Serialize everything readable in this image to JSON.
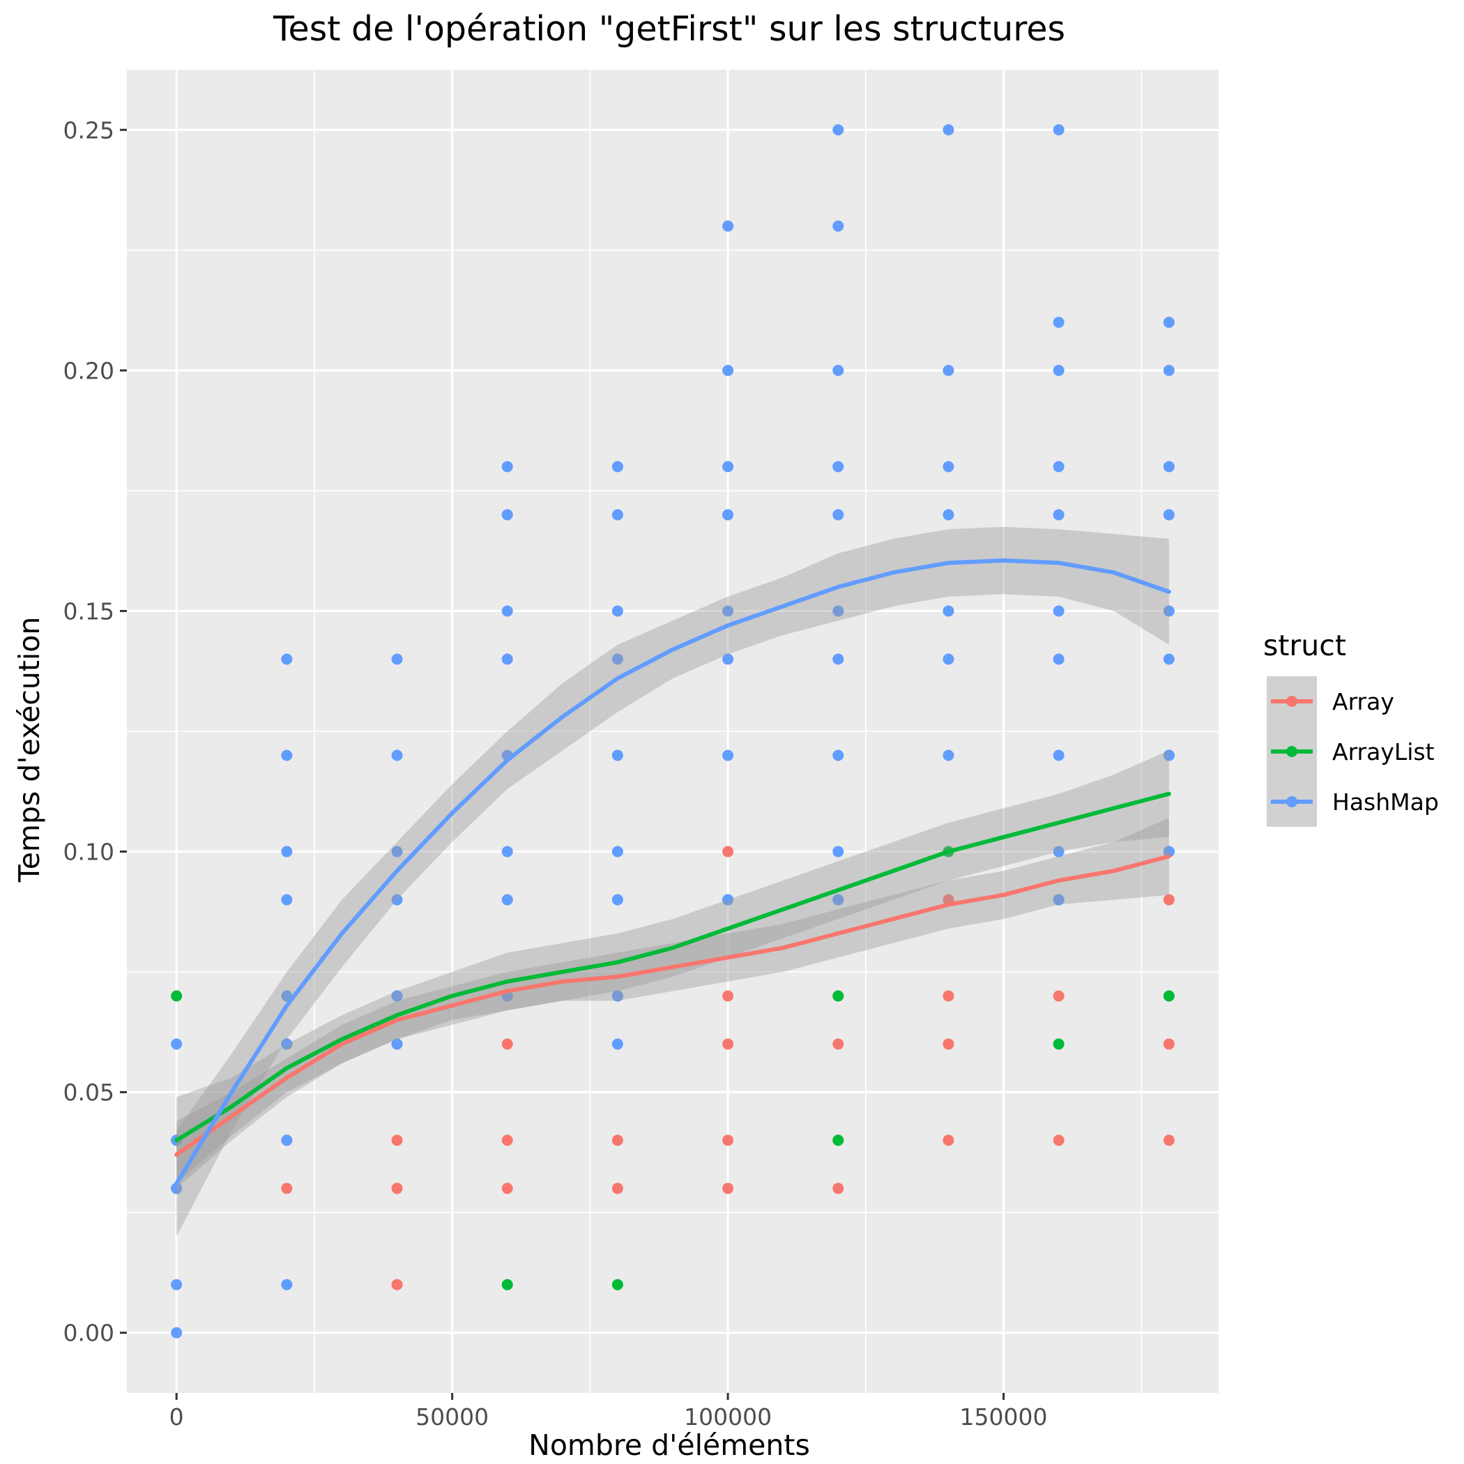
{
  "chart_data": {
    "type": "scatter",
    "title": "Test de l'opération \"getFirst\" sur les structures",
    "xlabel": "Nombre d'éléments",
    "ylabel": "Temps d'exécution",
    "xlim": [
      -9000,
      189000
    ],
    "ylim": [
      -0.0125,
      0.2625
    ],
    "x_ticks": [
      0,
      50000,
      100000,
      150000
    ],
    "x_tick_labels": [
      "0",
      "50000",
      "100000",
      "150000"
    ],
    "y_ticks": [
      0,
      0.05,
      0.1,
      0.15,
      0.2,
      0.25
    ],
    "y_tick_labels": [
      "0.00",
      "0.05",
      "0.10",
      "0.15",
      "0.20",
      "0.25"
    ],
    "grid": true,
    "legend": {
      "title": "struct",
      "position": "right"
    },
    "series": [
      {
        "name": "Array",
        "color": "#F8766D",
        "points": [
          [
            0,
            0.03
          ],
          [
            0,
            0.04
          ],
          [
            20000,
            0.03
          ],
          [
            20000,
            0.04
          ],
          [
            20000,
            0.06
          ],
          [
            40000,
            0.01
          ],
          [
            40000,
            0.03
          ],
          [
            40000,
            0.04
          ],
          [
            40000,
            0.06
          ],
          [
            60000,
            0.03
          ],
          [
            60000,
            0.04
          ],
          [
            60000,
            0.06
          ],
          [
            60000,
            0.07
          ],
          [
            80000,
            0.03
          ],
          [
            80000,
            0.04
          ],
          [
            80000,
            0.07
          ],
          [
            100000,
            0.03
          ],
          [
            100000,
            0.04
          ],
          [
            100000,
            0.06
          ],
          [
            100000,
            0.07
          ],
          [
            100000,
            0.1
          ],
          [
            120000,
            0.03
          ],
          [
            120000,
            0.04
          ],
          [
            120000,
            0.06
          ],
          [
            120000,
            0.07
          ],
          [
            140000,
            0.04
          ],
          [
            140000,
            0.06
          ],
          [
            140000,
            0.07
          ],
          [
            140000,
            0.09
          ],
          [
            160000,
            0.04
          ],
          [
            160000,
            0.07
          ],
          [
            180000,
            0.04
          ],
          [
            180000,
            0.06
          ],
          [
            180000,
            0.07
          ],
          [
            180000,
            0.09
          ]
        ],
        "smooth": [
          [
            0,
            0.037
          ],
          [
            10000,
            0.045
          ],
          [
            20000,
            0.053
          ],
          [
            30000,
            0.06
          ],
          [
            40000,
            0.065
          ],
          [
            50000,
            0.068
          ],
          [
            60000,
            0.071
          ],
          [
            70000,
            0.073
          ],
          [
            80000,
            0.074
          ],
          [
            90000,
            0.076
          ],
          [
            100000,
            0.078
          ],
          [
            110000,
            0.08
          ],
          [
            120000,
            0.083
          ],
          [
            130000,
            0.086
          ],
          [
            140000,
            0.089
          ],
          [
            150000,
            0.091
          ],
          [
            160000,
            0.094
          ],
          [
            170000,
            0.096
          ],
          [
            180000,
            0.099
          ]
        ],
        "band": [
          0.007,
          0.005,
          0.004,
          0.004,
          0.004,
          0.004,
          0.004,
          0.004,
          0.005,
          0.005,
          0.005,
          0.005,
          0.005,
          0.005,
          0.005,
          0.005,
          0.005,
          0.006,
          0.008
        ]
      },
      {
        "name": "ArrayList",
        "color": "#00BA38",
        "points": [
          [
            0,
            0.07
          ],
          [
            0,
            0.04
          ],
          [
            20000,
            0.06
          ],
          [
            40000,
            0.07
          ],
          [
            60000,
            0.01
          ],
          [
            60000,
            0.07
          ],
          [
            80000,
            0.01
          ],
          [
            80000,
            0.07
          ],
          [
            100000,
            0.09
          ],
          [
            120000,
            0.04
          ],
          [
            120000,
            0.07
          ],
          [
            120000,
            0.09
          ],
          [
            140000,
            0.1
          ],
          [
            160000,
            0.06
          ],
          [
            160000,
            0.09
          ],
          [
            180000,
            0.07
          ],
          [
            180000,
            0.1
          ],
          [
            180000,
            0.12
          ]
        ],
        "smooth": [
          [
            0,
            0.04
          ],
          [
            10000,
            0.047
          ],
          [
            20000,
            0.055
          ],
          [
            30000,
            0.061
          ],
          [
            40000,
            0.066
          ],
          [
            50000,
            0.07
          ],
          [
            60000,
            0.073
          ],
          [
            70000,
            0.075
          ],
          [
            80000,
            0.077
          ],
          [
            90000,
            0.08
          ],
          [
            100000,
            0.084
          ],
          [
            110000,
            0.088
          ],
          [
            120000,
            0.092
          ],
          [
            130000,
            0.096
          ],
          [
            140000,
            0.1
          ],
          [
            150000,
            0.103
          ],
          [
            160000,
            0.106
          ],
          [
            170000,
            0.109
          ],
          [
            180000,
            0.112
          ]
        ],
        "band": [
          0.009,
          0.006,
          0.005,
          0.005,
          0.005,
          0.005,
          0.006,
          0.006,
          0.006,
          0.006,
          0.006,
          0.006,
          0.006,
          0.006,
          0.006,
          0.006,
          0.006,
          0.007,
          0.009
        ]
      },
      {
        "name": "HashMap",
        "color": "#619CFF",
        "points": [
          [
            0,
            0.0
          ],
          [
            0,
            0.01
          ],
          [
            0,
            0.03
          ],
          [
            0,
            0.04
          ],
          [
            0,
            0.06
          ],
          [
            20000,
            0.01
          ],
          [
            20000,
            0.04
          ],
          [
            20000,
            0.06
          ],
          [
            20000,
            0.07
          ],
          [
            20000,
            0.09
          ],
          [
            20000,
            0.1
          ],
          [
            20000,
            0.12
          ],
          [
            20000,
            0.14
          ],
          [
            40000,
            0.06
          ],
          [
            40000,
            0.07
          ],
          [
            40000,
            0.09
          ],
          [
            40000,
            0.1
          ],
          [
            40000,
            0.12
          ],
          [
            40000,
            0.14
          ],
          [
            60000,
            0.07
          ],
          [
            60000,
            0.09
          ],
          [
            60000,
            0.1
          ],
          [
            60000,
            0.12
          ],
          [
            60000,
            0.14
          ],
          [
            60000,
            0.15
          ],
          [
            60000,
            0.17
          ],
          [
            60000,
            0.18
          ],
          [
            80000,
            0.06
          ],
          [
            80000,
            0.07
          ],
          [
            80000,
            0.09
          ],
          [
            80000,
            0.1
          ],
          [
            80000,
            0.12
          ],
          [
            80000,
            0.14
          ],
          [
            80000,
            0.15
          ],
          [
            80000,
            0.17
          ],
          [
            80000,
            0.18
          ],
          [
            100000,
            0.09
          ],
          [
            100000,
            0.12
          ],
          [
            100000,
            0.14
          ],
          [
            100000,
            0.15
          ],
          [
            100000,
            0.17
          ],
          [
            100000,
            0.18
          ],
          [
            100000,
            0.2
          ],
          [
            100000,
            0.23
          ],
          [
            120000,
            0.09
          ],
          [
            120000,
            0.1
          ],
          [
            120000,
            0.12
          ],
          [
            120000,
            0.14
          ],
          [
            120000,
            0.15
          ],
          [
            120000,
            0.17
          ],
          [
            120000,
            0.18
          ],
          [
            120000,
            0.2
          ],
          [
            120000,
            0.23
          ],
          [
            120000,
            0.25
          ],
          [
            140000,
            0.12
          ],
          [
            140000,
            0.14
          ],
          [
            140000,
            0.15
          ],
          [
            140000,
            0.17
          ],
          [
            140000,
            0.18
          ],
          [
            140000,
            0.2
          ],
          [
            140000,
            0.25
          ],
          [
            160000,
            0.09
          ],
          [
            160000,
            0.1
          ],
          [
            160000,
            0.12
          ],
          [
            160000,
            0.14
          ],
          [
            160000,
            0.15
          ],
          [
            160000,
            0.17
          ],
          [
            160000,
            0.18
          ],
          [
            160000,
            0.2
          ],
          [
            160000,
            0.21
          ],
          [
            160000,
            0.25
          ],
          [
            180000,
            0.1
          ],
          [
            180000,
            0.12
          ],
          [
            180000,
            0.14
          ],
          [
            180000,
            0.15
          ],
          [
            180000,
            0.17
          ],
          [
            180000,
            0.18
          ],
          [
            180000,
            0.2
          ],
          [
            180000,
            0.21
          ]
        ],
        "smooth": [
          [
            0,
            0.031
          ],
          [
            10000,
            0.05
          ],
          [
            20000,
            0.068
          ],
          [
            30000,
            0.083
          ],
          [
            40000,
            0.096
          ],
          [
            50000,
            0.108
          ],
          [
            60000,
            0.119
          ],
          [
            70000,
            0.128
          ],
          [
            80000,
            0.136
          ],
          [
            90000,
            0.142
          ],
          [
            100000,
            0.147
          ],
          [
            110000,
            0.151
          ],
          [
            120000,
            0.155
          ],
          [
            130000,
            0.158
          ],
          [
            140000,
            0.16
          ],
          [
            150000,
            0.1605
          ],
          [
            160000,
            0.16
          ],
          [
            170000,
            0.158
          ],
          [
            180000,
            0.154
          ]
        ],
        "band": [
          0.011,
          0.008,
          0.007,
          0.007,
          0.006,
          0.006,
          0.006,
          0.007,
          0.007,
          0.006,
          0.006,
          0.006,
          0.007,
          0.007,
          0.007,
          0.007,
          0.007,
          0.008,
          0.011
        ]
      }
    ]
  }
}
